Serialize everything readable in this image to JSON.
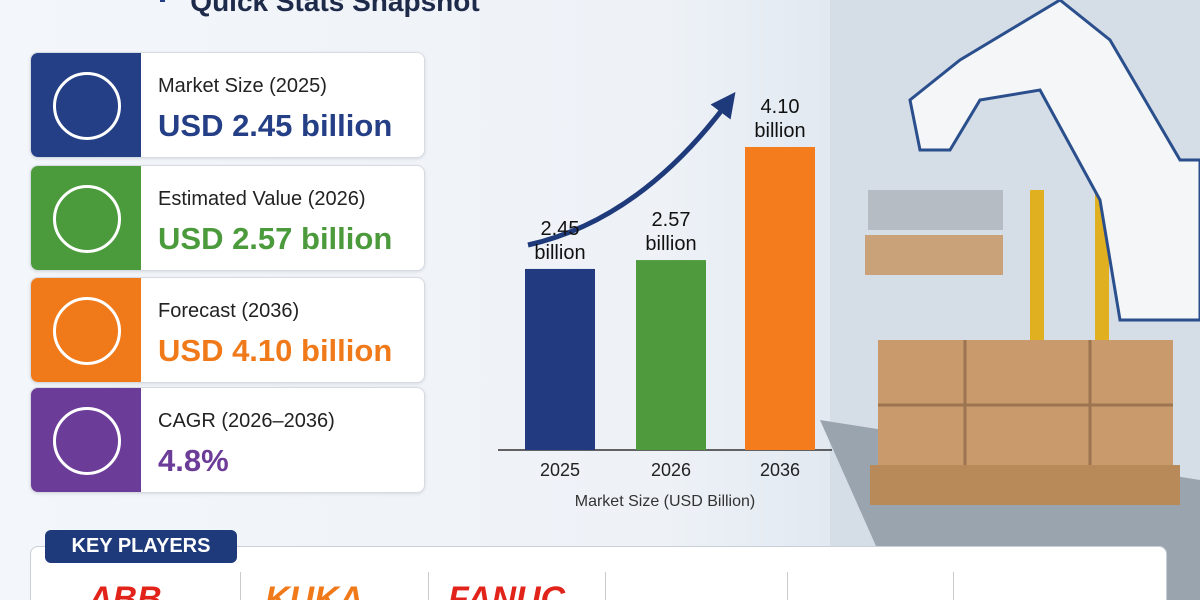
{
  "header": {
    "title": "Quick Stats Snapshot"
  },
  "cards": [
    {
      "label": "Market Size (2025)",
      "value": "USD 2.45 billion",
      "color": "#253f86"
    },
    {
      "label": "Estimated Value (2026)",
      "value": "USD 2.57 billion",
      "color": "#4b9a3b"
    },
    {
      "label": "Forecast (2036)",
      "value": "USD 4.10 billion",
      "color": "#f07a1a"
    },
    {
      "label": "CAGR (2026–2036)",
      "value": "4.8%",
      "color": "#6b3c98"
    }
  ],
  "chart_data": {
    "type": "bar",
    "categories": [
      "2025",
      "2026",
      "2036"
    ],
    "values": [
      2.45,
      2.57,
      4.1
    ],
    "value_labels": [
      "2.45 billion",
      "2.57 billion",
      "4.10 billion"
    ],
    "colors": [
      "#213a80",
      "#4e9a3c",
      "#f47c1c"
    ],
    "xlabel": "Market Size (USD Billion)"
  },
  "key_players": {
    "title": "KEY PLAYERS",
    "logos": [
      {
        "name": "ABB",
        "color": "#e2231a"
      },
      {
        "name": "KUKA",
        "color": "#f07a1a"
      },
      {
        "name": "FANUC",
        "color": "#e2231a"
      }
    ]
  }
}
